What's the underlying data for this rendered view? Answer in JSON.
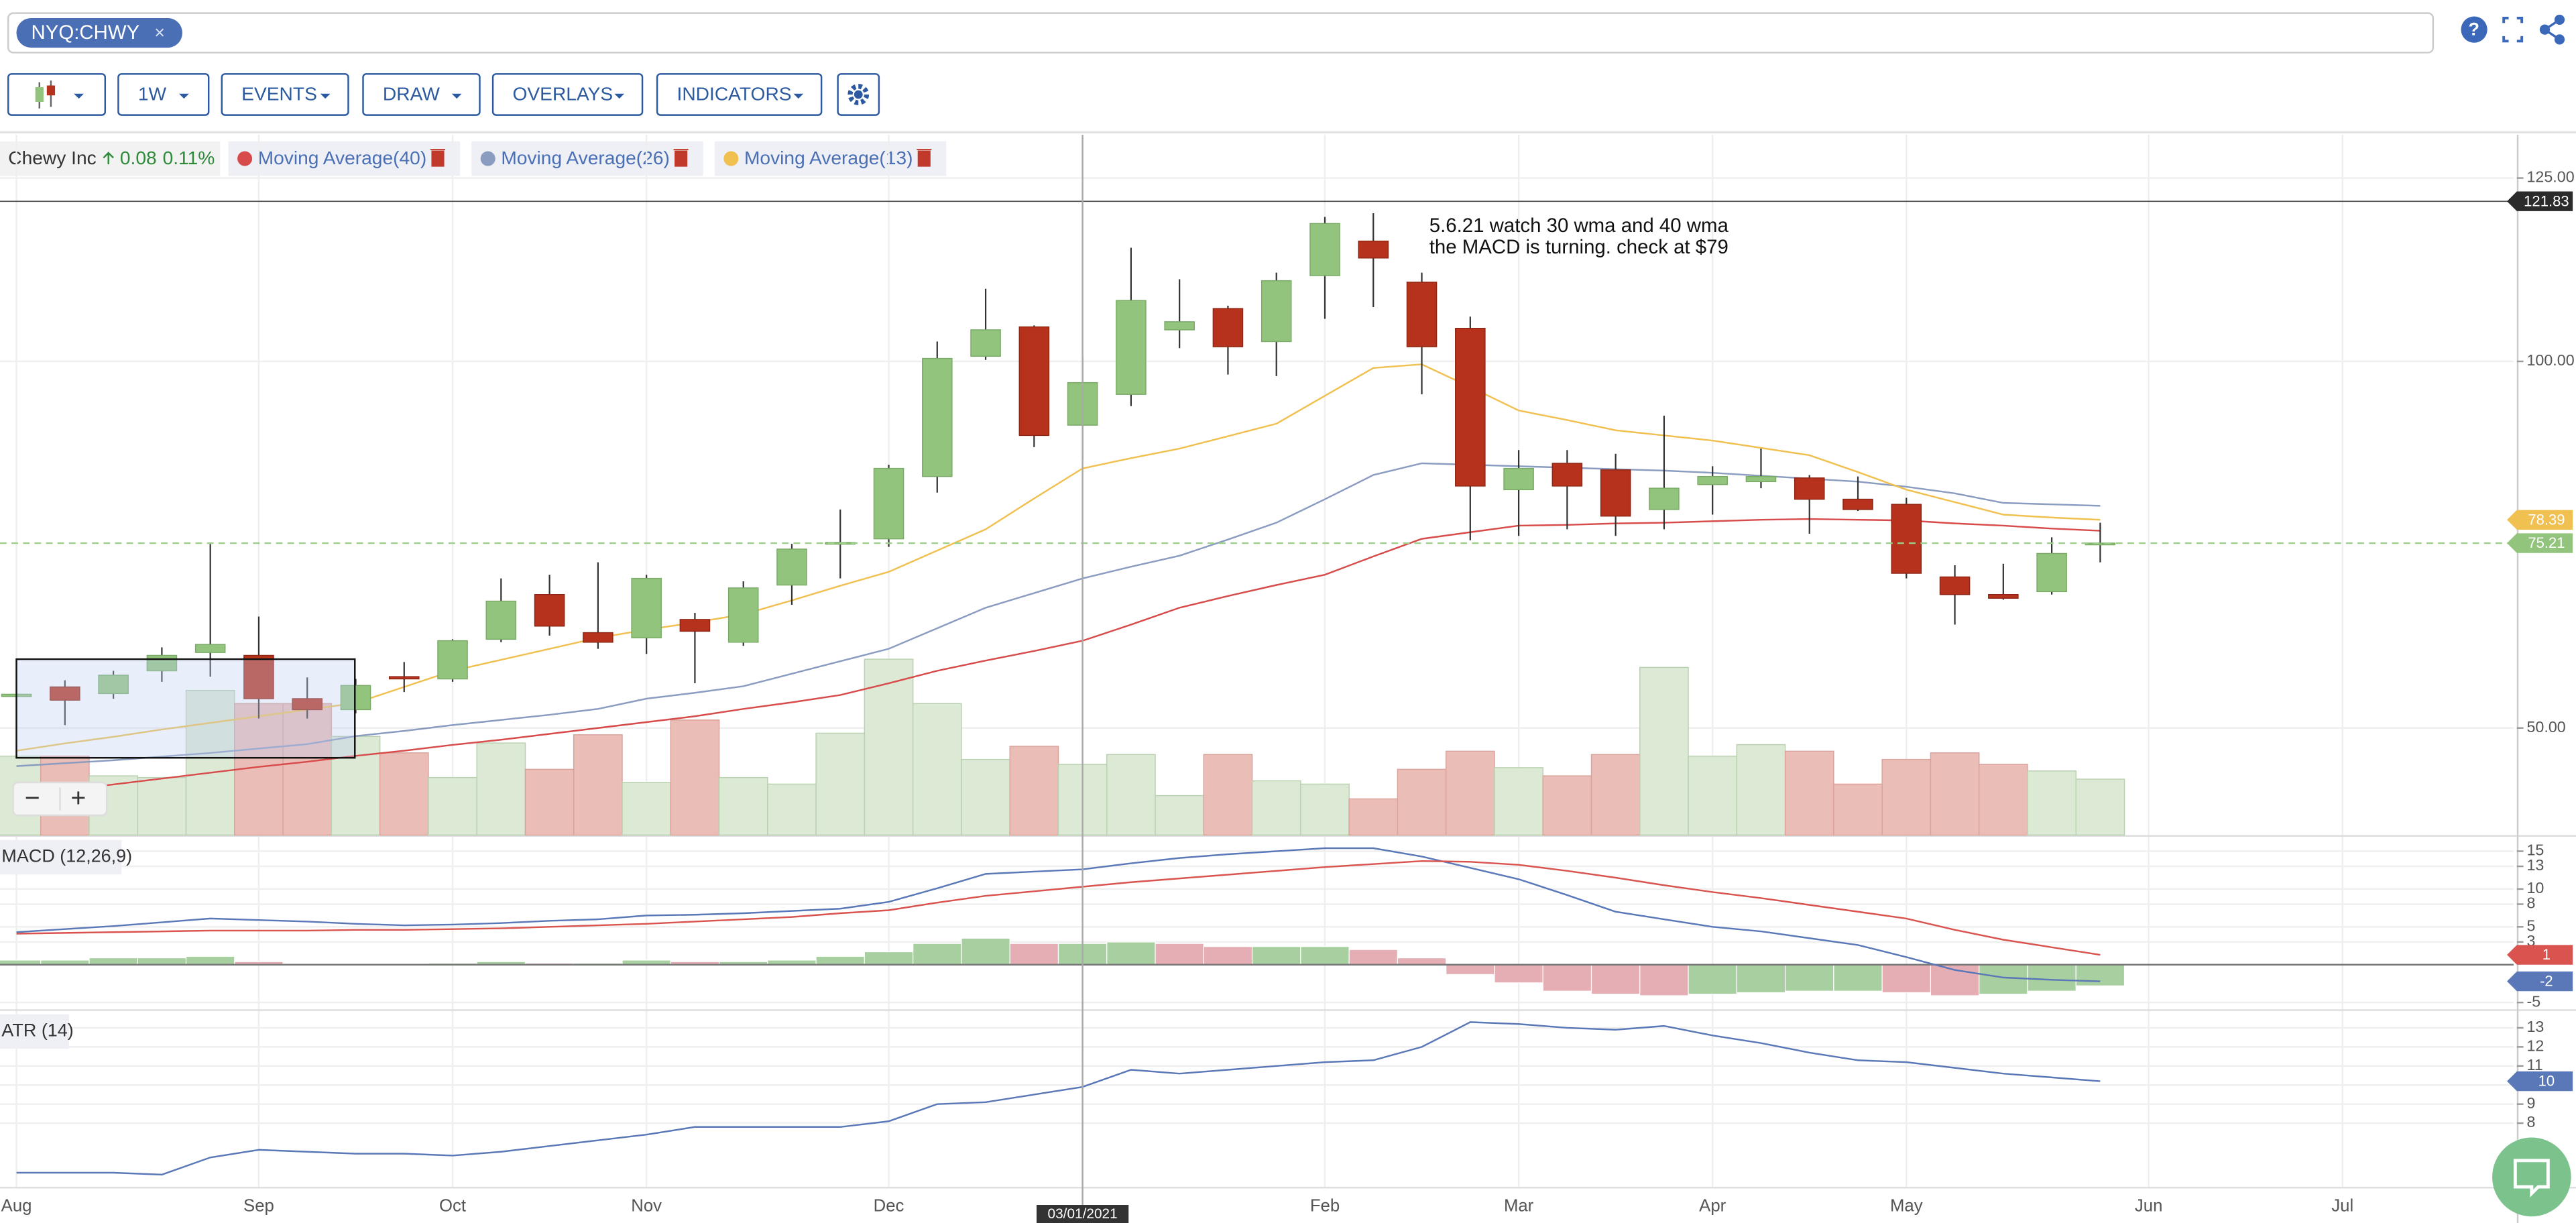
{
  "header": {
    "symbol": "NYQ:CHWY"
  },
  "toolbar": {
    "buttons": [
      "1W",
      "EVENTS",
      "DRAW",
      "OVERLAYS",
      "INDICATORS"
    ]
  },
  "legend": {
    "name": "Chewy Inc",
    "change": "0.08",
    "change_percent": "0.11%"
  },
  "chart_data": {
    "type": "candlestick",
    "categories": [
      null,
      null,
      null,
      null,
      null,
      null,
      null,
      null,
      null,
      null,
      null,
      null,
      null,
      null,
      null,
      null,
      null,
      null,
      null,
      null,
      null,
      null,
      null,
      null,
      null,
      null,
      null,
      null,
      null,
      null,
      null,
      null,
      null,
      null,
      null,
      null,
      null,
      null,
      null,
      null,
      null,
      null,
      null,
      null
    ],
    "xlim": [
      -0.34,
      51.53
    ],
    "xticks": [
      {
        "value": 0,
        "label": "Aug"
      },
      {
        "value": 5,
        "label": "Sep"
      },
      {
        "value": 9,
        "label": "Oct"
      },
      {
        "value": 13,
        "label": "Nov"
      },
      {
        "value": 18,
        "label": "Dec"
      },
      {
        "value": 27,
        "label": "Feb"
      },
      {
        "value": 31,
        "label": "Mar"
      },
      {
        "value": 35,
        "label": "Apr"
      },
      {
        "value": 39,
        "label": "May"
      },
      {
        "value": 44,
        "label": "Jun"
      },
      {
        "value": 48,
        "label": "Jul"
      }
    ],
    "crosshair": {
      "value": 22,
      "label": "03/01/2021"
    },
    "ylim": [
      35.4,
      130.9
    ],
    "yticks": [
      {
        "value": 125,
        "label": "125.00"
      },
      {
        "value": 100,
        "label": "100.00"
      },
      {
        "value": 50,
        "label": "50.00"
      }
    ],
    "open": [
      54.3,
      55.6,
      54.7,
      57.8,
      60.3,
      59.9,
      54.0,
      52.5,
      57.0,
      56.7,
      62.1,
      68.2,
      63.0,
      62.3,
      64.8,
      61.7,
      69.5,
      75.1,
      75.8,
      84.3,
      100.7,
      104.7,
      91.3,
      95.5,
      104.3,
      107.2,
      102.7,
      111.7,
      116.4,
      110.8,
      104.5,
      82.5,
      86.1,
      85.2,
      79.8,
      83.2,
      83.6,
      84.1,
      81.2,
      80.5,
      70.6,
      68.2,
      68.6,
      75.1
    ],
    "high": [
      54.8,
      56.5,
      57.8,
      61.0,
      75.1,
      65.2,
      56.9,
      56.7,
      59.0,
      62.1,
      70.4,
      70.9,
      72.6,
      70.9,
      65.7,
      70.0,
      75.1,
      79.8,
      85.9,
      102.7,
      109.9,
      104.9,
      100.7,
      115.5,
      111.2,
      107.6,
      112.1,
      119.7,
      120.2,
      112.1,
      106.1,
      87.9,
      87.9,
      87.4,
      92.6,
      85.7,
      88.1,
      84.5,
      84.3,
      81.4,
      72.2,
      72.4,
      76.0,
      78.0
    ],
    "low": [
      54.2,
      50.4,
      54.0,
      56.3,
      57.0,
      51.3,
      51.3,
      52.0,
      54.9,
      56.3,
      61.7,
      62.6,
      60.8,
      60.1,
      56.1,
      61.2,
      66.8,
      70.4,
      74.7,
      82.1,
      100.2,
      88.3,
      86.5,
      93.9,
      101.8,
      98.2,
      98.0,
      105.8,
      107.4,
      95.5,
      75.6,
      76.2,
      77.1,
      76.2,
      77.1,
      79.1,
      82.7,
      76.5,
      79.6,
      70.4,
      64.1,
      67.5,
      68.2,
      72.6
    ],
    "close": [
      54.6,
      53.8,
      57.2,
      59.9,
      61.4,
      54.0,
      52.5,
      55.8,
      56.7,
      61.9,
      67.3,
      63.9,
      61.7,
      70.4,
      63.2,
      69.1,
      74.4,
      75.3,
      85.4,
      100.4,
      104.3,
      89.9,
      97.1,
      108.3,
      105.4,
      102.0,
      111.0,
      118.8,
      114.1,
      102.0,
      83.0,
      85.4,
      83.0,
      78.9,
      82.7,
      84.3,
      84.3,
      81.2,
      79.8,
      71.1,
      68.2,
      67.7,
      73.8,
      75.21
    ],
    "up_color": "#93c47d",
    "down_color": "#b7321c",
    "volume": [
      48,
      48,
      36,
      35,
      88,
      80,
      80,
      60,
      50,
      35,
      56,
      40,
      61,
      32,
      70,
      35,
      31,
      62,
      107,
      80,
      46,
      54,
      43,
      49,
      24,
      49,
      33,
      31,
      22,
      40,
      51,
      41,
      36,
      49,
      102,
      48,
      55,
      51,
      31,
      46,
      50,
      43,
      39,
      34
    ],
    "overlays": [
      {
        "name": "Moving Average(40)",
        "color": "#d84b4b",
        "values": [
          40.6,
          41.5,
          42.3,
          43.1,
          43.9,
          44.7,
          45.4,
          46.2,
          46.9,
          47.7,
          48.4,
          49.2,
          50.0,
          50.8,
          51.6,
          52.6,
          53.5,
          54.5,
          56.1,
          57.8,
          59.2,
          60.5,
          61.9,
          64.1,
          66.4,
          68.0,
          69.5,
          70.9,
          73.4,
          75.8,
          76.7,
          77.6,
          77.7,
          77.9,
          78.0,
          78.2,
          78.4,
          78.5,
          78.4,
          78.3,
          77.9,
          77.6,
          77.2,
          76.9
        ]
      },
      {
        "name": "Moving Average(26)",
        "color": "#8a9cc0",
        "values": [
          44.8,
          45.2,
          45.6,
          46.1,
          46.6,
          47.2,
          47.8,
          48.9,
          49.6,
          50.4,
          51.1,
          51.8,
          52.6,
          54.0,
          54.8,
          55.7,
          57.4,
          59.1,
          60.8,
          63.6,
          66.4,
          68.4,
          70.4,
          72.0,
          73.5,
          75.7,
          78.0,
          81.2,
          84.5,
          86.1,
          85.9,
          85.7,
          85.5,
          85.3,
          85.1,
          84.8,
          84.4,
          84.0,
          83.6,
          82.9,
          82.0,
          80.7,
          80.5,
          80.3
        ]
      },
      {
        "name": "Moving Average(13)",
        "color": "#f0c050",
        "values": [
          46.9,
          47.9,
          48.8,
          49.8,
          50.7,
          51.6,
          52.5,
          53.4,
          55.6,
          57.8,
          59.3,
          60.8,
          62.3,
          63.4,
          64.4,
          65.5,
          67.4,
          69.4,
          71.3,
          74.2,
          77.1,
          81.3,
          85.4,
          86.8,
          88.1,
          89.8,
          91.5,
          95.3,
          99.1,
          99.6,
          96.5,
          93.3,
          92.0,
          90.6,
          89.9,
          89.2,
          88.2,
          87.2,
          84.9,
          82.5,
          80.8,
          79.1,
          78.7,
          78.39
        ]
      }
    ],
    "tags": [
      {
        "value": 121.83,
        "color": "#2b2b2b",
        "line": "solid"
      },
      {
        "value": 78.39,
        "color": "#f0c050"
      },
      {
        "value": 75.21,
        "color": "#93c47d",
        "line": "dashed"
      }
    ],
    "annotation": [
      "5.6.21 watch 30 wma and 40 wma",
      "the MACD is turning. check at $79"
    ],
    "macd": {
      "label": "MACD (12,26,9)",
      "ylim": [
        -5.9,
        16.7
      ],
      "yticks": [
        15,
        13,
        10,
        8,
        5,
        3,
        -5
      ],
      "series": [
        {
          "color": "#5a78b8",
          "values": [
            4.3,
            4.7,
            5.1,
            5.6,
            6.1,
            5.9,
            5.7,
            5.4,
            5.2,
            5.3,
            5.5,
            5.8,
            6.0,
            6.5,
            6.6,
            6.8,
            7.1,
            7.4,
            8.3,
            10.1,
            12.0,
            12.3,
            12.6,
            13.4,
            14.1,
            14.6,
            15.0,
            15.4,
            15.4,
            14.3,
            12.8,
            11.3,
            9.2,
            7.0,
            6.0,
            5.0,
            4.4,
            3.5,
            2.6,
            1.0,
            -0.7,
            -1.7,
            -2.0,
            -2.2
          ]
        },
        {
          "color": "#d9534f",
          "values": [
            4.1,
            4.2,
            4.3,
            4.4,
            4.5,
            4.5,
            4.5,
            4.6,
            4.6,
            4.7,
            4.8,
            5.0,
            5.2,
            5.4,
            5.7,
            6.0,
            6.3,
            6.8,
            7.2,
            8.2,
            9.1,
            9.7,
            10.3,
            10.9,
            11.4,
            11.9,
            12.4,
            12.9,
            13.3,
            13.7,
            13.6,
            13.2,
            12.4,
            11.5,
            10.5,
            9.6,
            8.8,
            7.9,
            7.0,
            6.1,
            4.6,
            3.3,
            2.3,
            1.3
          ]
        }
      ],
      "histogram": [
        0.6,
        0.6,
        0.9,
        0.9,
        1.1,
        0.4,
        0.1,
        0.1,
        0.1,
        0.2,
        0.4,
        0.2,
        0.2,
        0.6,
        0.4,
        0.4,
        0.6,
        1.1,
        1.7,
        2.8,
        3.5,
        2.8,
        2.8,
        3.0,
        2.8,
        2.4,
        2.4,
        2.4,
        2.0,
        0.9,
        -1.3,
        -2.4,
        -3.5,
        -3.9,
        -4.1,
        -3.9,
        -3.7,
        -3.5,
        -3.5,
        -3.7,
        -4.1,
        -3.9,
        -3.5,
        -2.8
      ],
      "tags": [
        {
          "value": 1.3,
          "label": "1",
          "color": "#d9534f"
        },
        {
          "value": -2.2,
          "label": "-2",
          "color": "#5a78b8"
        }
      ]
    },
    "atr": {
      "label": "ATR (14)",
      "ylim": [
        4.66,
        13.8
      ],
      "yticks": [
        13,
        12,
        11,
        10,
        9,
        8
      ],
      "series": [
        {
          "color": "#5a78b8",
          "values": [
            5.4,
            5.4,
            5.4,
            5.3,
            6.2,
            6.6,
            6.5,
            6.4,
            6.4,
            6.3,
            6.5,
            6.8,
            7.1,
            7.4,
            7.8,
            7.8,
            7.8,
            7.8,
            8.1,
            9.0,
            9.1,
            9.5,
            9.9,
            10.8,
            10.6,
            10.8,
            11.0,
            11.2,
            11.3,
            12.0,
            13.3,
            13.2,
            13.0,
            12.9,
            13.1,
            12.6,
            12.2,
            11.7,
            11.3,
            11.2,
            10.9,
            10.6,
            10.4,
            10.2
          ]
        }
      ],
      "tags": [
        {
          "value": 10.2,
          "label": "10",
          "color": "#5a78b8"
        }
      ]
    }
  }
}
